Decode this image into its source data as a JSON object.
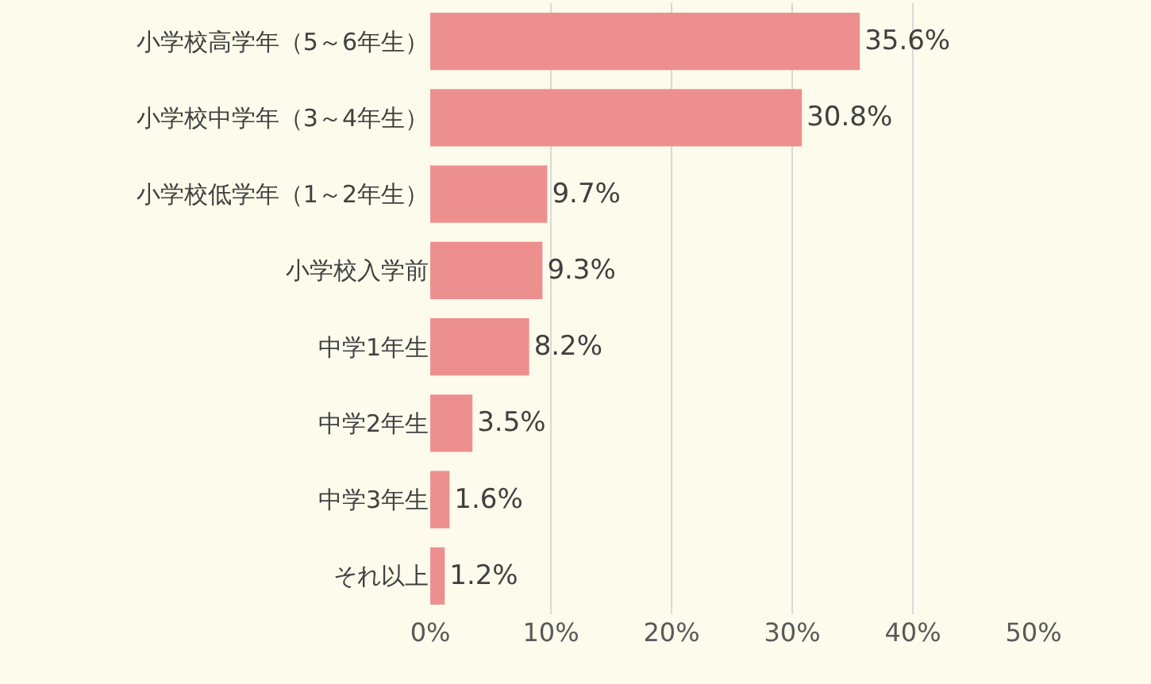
{
  "chart_data": {
    "type": "bar",
    "orientation": "horizontal",
    "categories": [
      "小学校高学年（5～6年生）",
      "小学校中学年（3～4年生）",
      "小学校低学年（1～2年生）",
      "小学校入学前",
      "中学1年生",
      "中学2年生",
      "中学3年生",
      "それ以上"
    ],
    "values": [
      35.6,
      30.8,
      9.7,
      9.3,
      8.2,
      3.5,
      1.6,
      1.2
    ],
    "value_labels": [
      "35.6%",
      "30.8%",
      "9.7%",
      "9.3%",
      "8.2%",
      "3.5%",
      "1.6%",
      "1.2%"
    ],
    "color": "#ee8f8f",
    "xlim": [
      0,
      50
    ],
    "xticks": [
      {
        "value": 0,
        "label": "0%"
      },
      {
        "value": 10,
        "label": "10%"
      },
      {
        "value": 20,
        "label": "20%"
      },
      {
        "value": 30,
        "label": "30%"
      },
      {
        "value": 40,
        "label": "40%"
      },
      {
        "value": 50,
        "label": "50%"
      }
    ],
    "grid": "x",
    "legend": false
  }
}
